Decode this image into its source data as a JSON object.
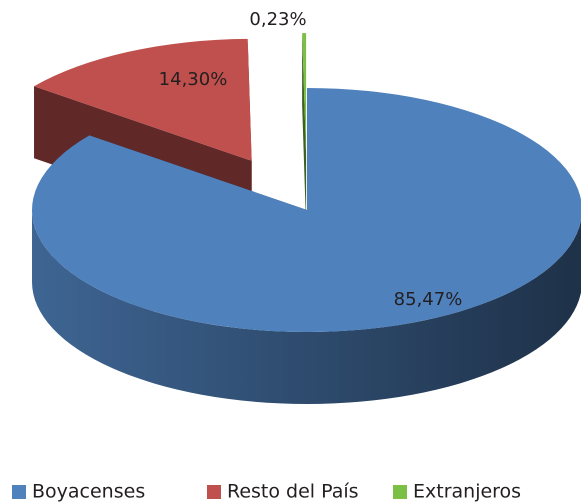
{
  "chart_data": {
    "type": "pie3d",
    "categories": [
      "Boyacenses",
      "Resto del País",
      "Extranjeros"
    ],
    "values": [
      85.47,
      14.3,
      0.23
    ],
    "value_labels": [
      "85,47%",
      "14,30%",
      "0,23%"
    ],
    "colors": [
      "#4f81bd",
      "#c0504d",
      "#7cbf45"
    ],
    "legend": "bottom"
  }
}
